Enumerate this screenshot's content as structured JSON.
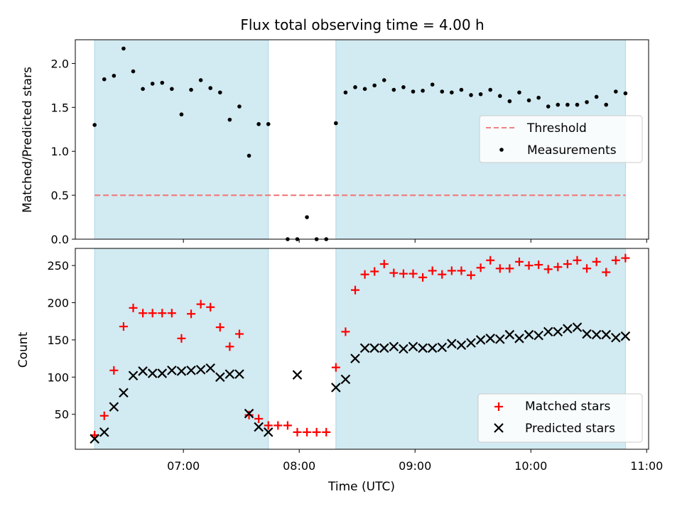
{
  "title": "Flux total observing time = 4.00 h",
  "colors": {
    "shade": "#add8e6",
    "threshold": "#f08080",
    "matched": "#ff0000",
    "predicted": "#000000",
    "measurement": "#000000"
  },
  "chart_data": [
    {
      "type": "scatter",
      "ylabel": "Matched/Predicted stars",
      "xlim": [
        "06:04",
        "11:01"
      ],
      "ylim": [
        0,
        2.27
      ],
      "yticks": [
        "0.0",
        "0.5",
        "1.0",
        "1.5",
        "2.0"
      ],
      "ytick_values": [
        0,
        0.5,
        1.0,
        1.5,
        2.0
      ],
      "shaded_intervals": [
        [
          "06:14",
          "07:44"
        ],
        [
          "08:19",
          "10:49"
        ]
      ],
      "legend": {
        "position": "center-right",
        "entries": [
          "Threshold",
          "Measurements"
        ]
      },
      "threshold": {
        "name": "Threshold",
        "y": 0.5,
        "x": [
          "06:14",
          "10:49"
        ]
      },
      "series": [
        {
          "name": "Measurements",
          "points": [
            [
              "06:14",
              1.3
            ],
            [
              "06:19",
              1.82
            ],
            [
              "06:24",
              1.86
            ],
            [
              "06:29",
              2.17
            ],
            [
              "06:34",
              1.91
            ],
            [
              "06:39",
              1.71
            ],
            [
              "06:44",
              1.77
            ],
            [
              "06:49",
              1.78
            ],
            [
              "06:54",
              1.71
            ],
            [
              "06:59",
              1.42
            ],
            [
              "07:04",
              1.7
            ],
            [
              "07:09",
              1.81
            ],
            [
              "07:14",
              1.72
            ],
            [
              "07:19",
              1.67
            ],
            [
              "07:24",
              1.36
            ],
            [
              "07:29",
              1.51
            ],
            [
              "07:34",
              0.95
            ],
            [
              "07:39",
              1.31
            ],
            [
              "07:44",
              1.31
            ],
            [
              "07:54",
              0.0
            ],
            [
              "07:59",
              0.0
            ],
            [
              "08:04",
              0.25
            ],
            [
              "08:09",
              0.0
            ],
            [
              "08:14",
              0.0
            ],
            [
              "08:19",
              1.32
            ],
            [
              "08:24",
              1.67
            ],
            [
              "08:29",
              1.73
            ],
            [
              "08:34",
              1.71
            ],
            [
              "08:39",
              1.75
            ],
            [
              "08:44",
              1.81
            ],
            [
              "08:49",
              1.7
            ],
            [
              "08:54",
              1.73
            ],
            [
              "08:59",
              1.68
            ],
            [
              "09:04",
              1.69
            ],
            [
              "09:09",
              1.76
            ],
            [
              "09:14",
              1.68
            ],
            [
              "09:19",
              1.67
            ],
            [
              "09:24",
              1.7
            ],
            [
              "09:29",
              1.64
            ],
            [
              "09:34",
              1.65
            ],
            [
              "09:39",
              1.7
            ],
            [
              "09:44",
              1.63
            ],
            [
              "09:49",
              1.57
            ],
            [
              "09:54",
              1.67
            ],
            [
              "09:59",
              1.58
            ],
            [
              "10:04",
              1.61
            ],
            [
              "10:09",
              1.51
            ],
            [
              "10:14",
              1.53
            ],
            [
              "10:19",
              1.53
            ],
            [
              "10:24",
              1.53
            ],
            [
              "10:29",
              1.56
            ],
            [
              "10:34",
              1.62
            ],
            [
              "10:39",
              1.53
            ],
            [
              "10:44",
              1.68
            ],
            [
              "10:49",
              1.66
            ]
          ]
        }
      ]
    },
    {
      "type": "scatter",
      "xlabel": "Time (UTC)",
      "ylabel": "Count",
      "xlim": [
        "06:04",
        "11:01"
      ],
      "ylim": [
        3,
        273
      ],
      "xticks": [
        "07:00",
        "08:00",
        "09:00",
        "10:00",
        "11:00"
      ],
      "yticks": [
        "50",
        "100",
        "150",
        "200",
        "250"
      ],
      "ytick_values": [
        50,
        100,
        150,
        200,
        250
      ],
      "shaded_intervals": [
        [
          "06:14",
          "07:44"
        ],
        [
          "08:19",
          "10:49"
        ]
      ],
      "legend": {
        "position": "lower-right",
        "entries": [
          "Matched stars",
          "Predicted stars"
        ]
      },
      "x": [
        "06:14",
        "06:19",
        "06:24",
        "06:29",
        "06:34",
        "06:39",
        "06:44",
        "06:49",
        "06:54",
        "06:59",
        "07:04",
        "07:09",
        "07:14",
        "07:19",
        "07:24",
        "07:29",
        "07:34",
        "07:39",
        "07:44",
        "07:49",
        "07:54",
        "07:59",
        "08:04",
        "08:09",
        "08:14",
        "08:19",
        "08:24",
        "08:29",
        "08:34",
        "08:39",
        "08:44",
        "08:49",
        "08:54",
        "08:59",
        "09:04",
        "09:09",
        "09:14",
        "09:19",
        "09:24",
        "09:29",
        "09:34",
        "09:39",
        "09:44",
        "09:49",
        "09:54",
        "09:59",
        "10:04",
        "10:09",
        "10:14",
        "10:19",
        "10:24",
        "10:29",
        "10:34",
        "10:39",
        "10:44",
        "10:49"
      ],
      "series": [
        {
          "name": "Matched stars",
          "marker": "+",
          "values": [
            22,
            48,
            109,
            168,
            193,
            186,
            186,
            186,
            186,
            152,
            185,
            198,
            194,
            167,
            141,
            158,
            49,
            44,
            35,
            35,
            35,
            26,
            26,
            26,
            26,
            113,
            161,
            217,
            238,
            242,
            252,
            240,
            239,
            239,
            234,
            243,
            238,
            243,
            243,
            237,
            247,
            257,
            246,
            246,
            255,
            250,
            251,
            245,
            248,
            252,
            257,
            246,
            255,
            241,
            257,
            260
          ]
        },
        {
          "name": "Predicted stars",
          "marker": "x",
          "values": [
            17,
            26,
            60,
            79,
            102,
            108,
            105,
            105,
            109,
            108,
            109,
            110,
            112,
            100,
            104,
            104,
            51,
            33,
            26,
            null,
            null,
            103,
            null,
            null,
            null,
            86,
            97,
            125,
            139,
            139,
            139,
            141,
            138,
            141,
            139,
            139,
            140,
            145,
            143,
            146,
            150,
            152,
            151,
            157,
            152,
            157,
            156,
            161,
            161,
            165,
            167,
            158,
            157,
            157,
            153,
            155
          ]
        }
      ]
    }
  ]
}
